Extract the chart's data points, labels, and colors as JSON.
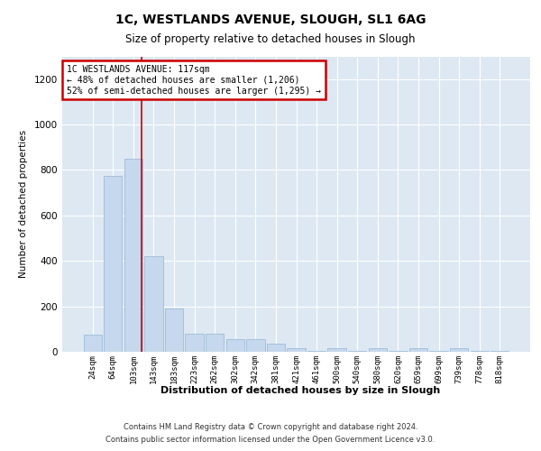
{
  "title1": "1C, WESTLANDS AVENUE, SLOUGH, SL1 6AG",
  "title2": "Size of property relative to detached houses in Slough",
  "xlabel": "Distribution of detached houses by size in Slough",
  "ylabel": "Number of detached properties",
  "footer1": "Contains HM Land Registry data © Crown copyright and database right 2024.",
  "footer2": "Contains public sector information licensed under the Open Government Licence v3.0.",
  "bar_labels": [
    "24sqm",
    "64sqm",
    "103sqm",
    "143sqm",
    "183sqm",
    "223sqm",
    "262sqm",
    "302sqm",
    "342sqm",
    "381sqm",
    "421sqm",
    "461sqm",
    "500sqm",
    "540sqm",
    "580sqm",
    "620sqm",
    "659sqm",
    "699sqm",
    "739sqm",
    "778sqm",
    "818sqm"
  ],
  "bar_heights": [
    75,
    775,
    850,
    420,
    190,
    80,
    80,
    55,
    55,
    35,
    15,
    5,
    15,
    5,
    15,
    5,
    15,
    5,
    15,
    5,
    5
  ],
  "bar_color": "#c5d8ed",
  "bar_edge_color": "#a0bcd8",
  "background_color": "#dde8f3",
  "grid_color": "#ffffff",
  "annotation_text": "1C WESTLANDS AVENUE: 117sqm\n← 48% of detached houses are smaller (1,206)\n52% of semi-detached houses are larger (1,295) →",
  "annotation_box_facecolor": "#ffffff",
  "annotation_box_edgecolor": "#cc0000",
  "red_line_x": 2.42,
  "ylim": [
    0,
    1300
  ],
  "yticks": [
    0,
    200,
    400,
    600,
    800,
    1000,
    1200
  ]
}
